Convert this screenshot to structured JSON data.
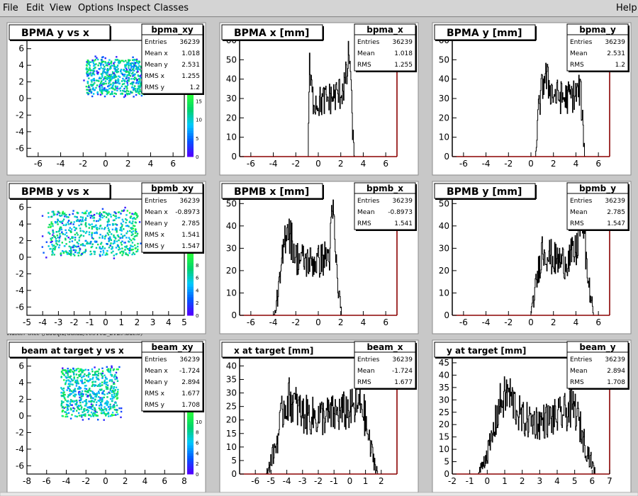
{
  "menubar": {
    "file": "File",
    "edit": "Edit",
    "view": "View",
    "options": "Options",
    "inspect": "Inspect",
    "classes": "Classes",
    "help": "Help"
  },
  "canvas_caption": "Raster Size (/adaql2/data2/e05102_2129.dat.0)",
  "chart_data": [
    {
      "type": "scatter",
      "title": "BPMA y vs x",
      "stats": {
        "name": "bpma_xy",
        "rows": [
          [
            "Entries",
            "36239"
          ],
          [
            "Mean x",
            "1.018"
          ],
          [
            "Mean y",
            "2.531"
          ],
          [
            "RMS x",
            "1.255"
          ],
          [
            "RMS y",
            "1.2"
          ]
        ]
      },
      "x_ticks": [
        "-6",
        "-4",
        "-2",
        "0",
        "2",
        "4",
        "6"
      ],
      "y_ticks": [
        "-6",
        "-4",
        "-2",
        "0",
        "2",
        "4",
        "6"
      ],
      "xlim": [
        -7,
        7
      ],
      "ylim": [
        -7,
        7
      ],
      "z_ticks": [
        "0",
        "5",
        "10",
        "15"
      ],
      "zlim": [
        0,
        17
      ],
      "region": {
        "x": [
          -1.8,
          3.6
        ],
        "y": [
          0.6,
          4.8
        ]
      }
    },
    {
      "type": "histogram",
      "title": "BPMA x [mm]",
      "stats": {
        "name": "bpma_x",
        "rows": [
          [
            "Entries",
            "36239"
          ],
          [
            "Mean",
            "1.018"
          ],
          [
            "RMS",
            "1.255"
          ]
        ]
      },
      "x_ticks": [
        "-6",
        "-4",
        "-2",
        "0",
        "2",
        "4",
        "6"
      ],
      "y_ticks": [
        "0",
        "10",
        "20",
        "30",
        "40",
        "50",
        "60"
      ],
      "xlim": [
        -7,
        7
      ],
      "ylim": [
        0,
        60
      ],
      "profile": [
        [
          -0.9,
          0
        ],
        [
          -0.8,
          45
        ],
        [
          -0.5,
          30
        ],
        [
          0,
          28
        ],
        [
          1,
          30
        ],
        [
          2,
          33
        ],
        [
          2.5,
          40
        ],
        [
          2.8,
          55
        ],
        [
          3.0,
          20
        ],
        [
          3.2,
          0
        ]
      ]
    },
    {
      "type": "histogram",
      "title": "BPMA y [mm]",
      "stats": {
        "name": "bpma_y",
        "rows": [
          [
            "Entries",
            "36239"
          ],
          [
            "Mean",
            "2.531"
          ],
          [
            "RMS",
            "1.2"
          ]
        ]
      },
      "x_ticks": [
        "-6",
        "-4",
        "-2",
        "0",
        "2",
        "4",
        "6"
      ],
      "y_ticks": [
        "0",
        "10",
        "20",
        "30",
        "40",
        "50",
        "60"
      ],
      "xlim": [
        -7,
        7
      ],
      "ylim": [
        0,
        60
      ],
      "profile": [
        [
          0.4,
          0
        ],
        [
          0.7,
          25
        ],
        [
          1.2,
          42
        ],
        [
          2,
          32
        ],
        [
          3,
          30
        ],
        [
          4,
          32
        ],
        [
          4.4,
          35
        ],
        [
          4.8,
          0
        ]
      ]
    },
    {
      "type": "scatter",
      "title": "BPMB y vs x",
      "stats": {
        "name": "bpmb_xy",
        "rows": [
          [
            "Entries",
            "36239"
          ],
          [
            "Mean x",
            "-0.8973"
          ],
          [
            "Mean y",
            "2.785"
          ],
          [
            "RMS x",
            "1.541"
          ],
          [
            "RMS y",
            "1.547"
          ]
        ]
      },
      "x_ticks": [
        "-5",
        "-4",
        "-3",
        "-2",
        "-1",
        "0",
        "1",
        "2",
        "3",
        "4",
        "5"
      ],
      "y_ticks": [
        "-6",
        "-4",
        "-2",
        "0",
        "2",
        "4",
        "6"
      ],
      "xlim": [
        -5,
        5
      ],
      "ylim": [
        -7,
        7
      ],
      "z_ticks": [
        "0",
        "2",
        "4",
        "6",
        "8"
      ],
      "zlim": [
        0,
        10
      ],
      "region": {
        "x": [
          -3.7,
          2
        ],
        "y": [
          0.3,
          5.7
        ]
      }
    },
    {
      "type": "histogram",
      "title": "BPMB x [mm]",
      "stats": {
        "name": "bpmb_x",
        "rows": [
          [
            "Entries",
            "36239"
          ],
          [
            "Mean",
            "-0.8973"
          ],
          [
            "RMS",
            "1.541"
          ]
        ]
      },
      "x_ticks": [
        "-6",
        "-4",
        "-2",
        "0",
        "2",
        "4",
        "6"
      ],
      "y_ticks": [
        "0",
        "10",
        "20",
        "30",
        "40",
        "50"
      ],
      "xlim": [
        -7,
        7
      ],
      "ylim": [
        0,
        52
      ],
      "profile": [
        [
          -3.9,
          0
        ],
        [
          -3.4,
          15
        ],
        [
          -2.8,
          42
        ],
        [
          -2,
          26
        ],
        [
          -1,
          24
        ],
        [
          0,
          24
        ],
        [
          1,
          27
        ],
        [
          1.3,
          48
        ],
        [
          1.7,
          15
        ],
        [
          2.1,
          0
        ]
      ]
    },
    {
      "type": "histogram",
      "title": "BPMB y [mm]",
      "stats": {
        "name": "bpmb_y",
        "rows": [
          [
            "Entries",
            "36239"
          ],
          [
            "Mean",
            "2.785"
          ],
          [
            "RMS",
            "1.547"
          ]
        ]
      },
      "x_ticks": [
        "-6",
        "-4",
        "-2",
        "0",
        "2",
        "4",
        "6"
      ],
      "y_ticks": [
        "0",
        "10",
        "20",
        "30",
        "40",
        "50"
      ],
      "xlim": [
        -7,
        7
      ],
      "ylim": [
        0,
        52
      ],
      "profile": [
        [
          0,
          0
        ],
        [
          0.5,
          15
        ],
        [
          1,
          30
        ],
        [
          1.4,
          28
        ],
        [
          2,
          25
        ],
        [
          3,
          24
        ],
        [
          4,
          28
        ],
        [
          4.6,
          45
        ],
        [
          5.1,
          15
        ],
        [
          5.6,
          0
        ]
      ]
    },
    {
      "type": "scatter",
      "title": "beam at target y vs x",
      "stats": {
        "name": "beam_xy",
        "rows": [
          [
            "Entries",
            "36239"
          ],
          [
            "Mean x",
            "-1.724"
          ],
          [
            "Mean y",
            "2.894"
          ],
          [
            "RMS x",
            "1.677"
          ],
          [
            "RMS y",
            "1.708"
          ]
        ]
      },
      "x_ticks": [
        "-8",
        "-6",
        "-4",
        "-2",
        "0",
        "2",
        "4",
        "6",
        "8"
      ],
      "y_ticks": [
        "-6",
        "-4",
        "-2",
        "0",
        "2",
        "4",
        "6"
      ],
      "xlim": [
        -8,
        8
      ],
      "ylim": [
        -7,
        7
      ],
      "z_ticks": [
        "0",
        "2",
        "4",
        "6",
        "8",
        "10"
      ],
      "zlim": [
        0,
        12
      ],
      "region": {
        "x": [
          -4.6,
          1.2
        ],
        "y": [
          0,
          5.8
        ]
      }
    },
    {
      "type": "histogram",
      "title": "x at target [mm]",
      "stats": {
        "name": "beam_x",
        "rows": [
          [
            "Entries",
            "36239"
          ],
          [
            "Mean",
            "-1.724"
          ],
          [
            "RMS",
            "1.677"
          ]
        ]
      },
      "x_ticks": [
        "-6",
        "-5",
        "-4",
        "-3",
        "-2",
        "-1",
        "0",
        "1",
        "2"
      ],
      "y_ticks": [
        "0",
        "5",
        "10",
        "15",
        "20",
        "25",
        "30",
        "35",
        "40"
      ],
      "xlim": [
        -7,
        3
      ],
      "ylim": [
        0,
        43
      ],
      "profile": [
        [
          -5.3,
          0
        ],
        [
          -4.7,
          10
        ],
        [
          -4.2,
          25
        ],
        [
          -3.8,
          28
        ],
        [
          -3,
          22
        ],
        [
          -2,
          21
        ],
        [
          -1,
          22
        ],
        [
          0.2,
          24
        ],
        [
          0.8,
          26
        ],
        [
          1.3,
          10
        ],
        [
          1.8,
          0
        ]
      ]
    },
    {
      "type": "histogram",
      "title": "y at target [mm]",
      "stats": {
        "name": "beam_y",
        "rows": [
          [
            "Entries",
            "36239"
          ],
          [
            "Mean",
            "2.894"
          ],
          [
            "RMS",
            "1.708"
          ]
        ]
      },
      "x_ticks": [
        "-2",
        "-1",
        "0",
        "1",
        "2",
        "3",
        "4",
        "5",
        "6",
        "7"
      ],
      "y_ticks": [
        "0",
        "5",
        "10",
        "15",
        "20",
        "25",
        "30",
        "35",
        "40",
        "45"
      ],
      "xlim": [
        -2,
        7
      ],
      "ylim": [
        0,
        47
      ],
      "profile": [
        [
          -0.5,
          0
        ],
        [
          0.2,
          12
        ],
        [
          0.7,
          28
        ],
        [
          1.2,
          33
        ],
        [
          2,
          22
        ],
        [
          3,
          21
        ],
        [
          4,
          23
        ],
        [
          5,
          27
        ],
        [
          5.6,
          12
        ],
        [
          6.2,
          0
        ]
      ]
    }
  ]
}
